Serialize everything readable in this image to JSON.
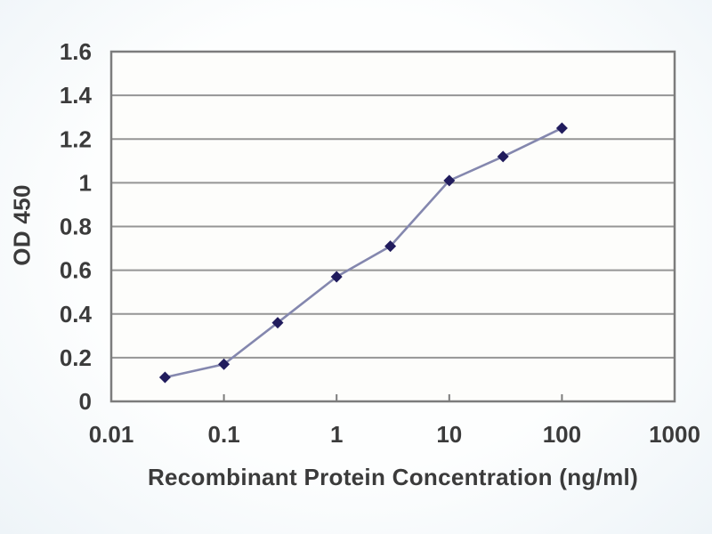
{
  "figure": {
    "kind": "elisa-standard-curve",
    "background_color": "#f2f6f9",
    "plot_background_color": "#fdfdfb"
  },
  "chart_data": {
    "type": "line",
    "title": "",
    "xlabel": "Recombinant Protein Concentration (ng/ml)",
    "ylabel": "OD 450",
    "x_scale": "log10",
    "xlim": [
      0.01,
      1000
    ],
    "ylim": [
      0,
      1.6
    ],
    "x_tick_labels": [
      "0.01",
      "0.1",
      "1",
      "10",
      "100",
      "1000"
    ],
    "x_tick_values": [
      0.01,
      0.1,
      1,
      10,
      100,
      1000
    ],
    "y_tick_labels": [
      "0",
      "0.2",
      "0.4",
      "0.6",
      "0.8",
      "1",
      "1.2",
      "1.4",
      "1.6"
    ],
    "y_tick_values": [
      0,
      0.2,
      0.4,
      0.6,
      0.8,
      1,
      1.2,
      1.4,
      1.6
    ],
    "grid": "horizontal",
    "legend": "none",
    "series": [
      {
        "name": "OD 450",
        "x": [
          0.03,
          0.1,
          0.3,
          1,
          3,
          10,
          30,
          100
        ],
        "y": [
          0.11,
          0.17,
          0.36,
          0.57,
          0.71,
          1.01,
          1.12,
          1.25
        ],
        "marker": "diamond",
        "marker_color": "#211c5d",
        "line_color": "#8487ae"
      }
    ],
    "frame_color": "#7c7c7c",
    "gridline_color": "#959595",
    "tick_label_color": "#3b3b3b"
  }
}
